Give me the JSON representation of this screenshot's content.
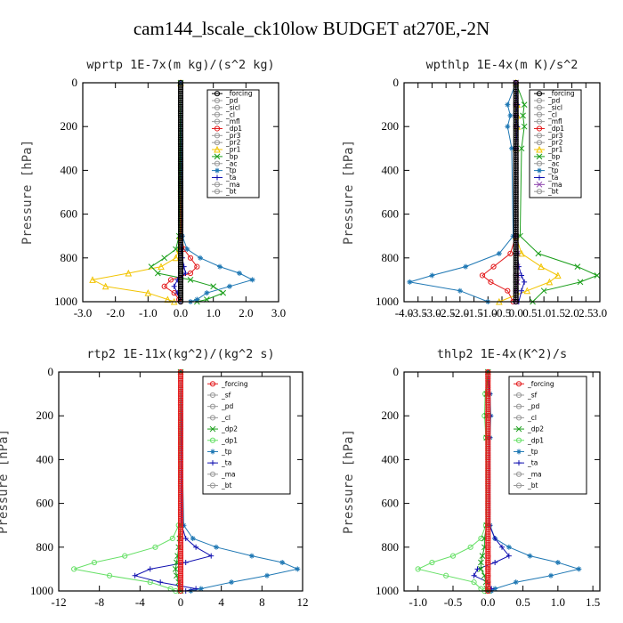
{
  "title": "cam144_lscale_ck10low  BUDGET at270E,-2N",
  "chart_data": [
    {
      "type": "line",
      "title": "wprtp  1E-7x(m kg)/(s^2 kg)",
      "ylabel": "Pressure [hPa]",
      "xlim": [
        -3,
        3
      ],
      "ylim": [
        1000,
        0
      ],
      "xticks": [
        "-3.0",
        "-2.0",
        "-1.0",
        "0.0",
        "1.0",
        "2.0",
        "3.0"
      ],
      "yticks": [
        0,
        200,
        400,
        600,
        800,
        1000
      ],
      "legend": [
        "_forcing",
        "_pd",
        "_sicl",
        "_cl",
        "_mfl",
        "_dp1",
        "_pr3",
        "_pr2",
        "_pr1",
        "_bp",
        "_ac",
        "_tp",
        "_ta",
        "_ma",
        "_bt"
      ],
      "y": [
        0,
        700,
        760,
        800,
        840,
        870,
        900,
        930,
        960,
        990,
        1000
      ],
      "series": [
        {
          "name": "_pr1",
          "color": "#f2c400",
          "marker": "tri",
          "values": [
            0,
            -0.02,
            -0.05,
            -0.15,
            -0.6,
            -1.6,
            -2.7,
            -2.3,
            -1.0,
            -0.4,
            -0.2
          ]
        },
        {
          "name": "_bp",
          "color": "#1a9e1a",
          "marker": "x",
          "values": [
            0,
            -0.05,
            -0.15,
            -0.5,
            -0.9,
            -0.7,
            0.3,
            1.0,
            1.3,
            0.8,
            0.5
          ]
        },
        {
          "name": "_dp1",
          "color": "#e31a1c",
          "marker": "circle",
          "values": [
            0,
            0.02,
            0.1,
            0.3,
            0.5,
            0.3,
            -0.3,
            -0.5,
            -0.2,
            -0.05,
            0
          ]
        },
        {
          "name": "_tp",
          "color": "#1f78b4",
          "marker": "star",
          "values": [
            0,
            0.05,
            0.2,
            0.6,
            1.2,
            1.8,
            2.2,
            1.5,
            0.8,
            0.5,
            0.3
          ]
        },
        {
          "name": "_ta",
          "color": "#1010b0",
          "marker": "plus",
          "values": [
            0,
            0,
            0.02,
            0.05,
            0.1,
            0.15,
            -0.1,
            -0.2,
            -0.1,
            0,
            0
          ]
        },
        {
          "name": "_forcing",
          "color": "#000000",
          "marker": "circle",
          "values": [
            0,
            0,
            0,
            0,
            0,
            0,
            0,
            0,
            0,
            0,
            0
          ]
        }
      ]
    },
    {
      "type": "line",
      "title": "wpthlp  1E-4x(m K)/s^2",
      "ylabel": "Pressure [hPa]",
      "xlim": [
        -4,
        3
      ],
      "ylim": [
        1000,
        0
      ],
      "xticks": [
        "-4.0",
        "-3.5",
        "-3.0",
        "-2.5",
        "-2.0",
        "-1.5",
        "-1.0",
        "-0.5",
        "0.0",
        "0.5",
        "1.0",
        "1.5",
        "2.0",
        "2.5",
        "3.0"
      ],
      "yticks": [
        0,
        200,
        400,
        600,
        800,
        1000
      ],
      "legend": [
        "_forcing",
        "_pd",
        "_sicl",
        "_cl",
        "_mfl",
        "_dp1",
        "_pr3",
        "_pr2",
        "_pr1",
        "_bp",
        "_ac",
        "_tp",
        "_ta",
        "_ma",
        "_bt"
      ],
      "y": [
        0,
        100,
        150,
        200,
        300,
        700,
        780,
        840,
        880,
        910,
        950,
        1000
      ],
      "series": [
        {
          "name": "_tp",
          "color": "#1f78b4",
          "marker": "star",
          "values": [
            0,
            -0.3,
            -0.2,
            -0.3,
            -0.15,
            -0.1,
            -0.6,
            -1.8,
            -3.0,
            -3.8,
            -2.0,
            -1.0
          ]
        },
        {
          "name": "_bp",
          "color": "#1a9e1a",
          "marker": "x",
          "values": [
            0,
            0.3,
            0.25,
            0.3,
            0.2,
            0.15,
            0.8,
            2.2,
            2.9,
            2.3,
            1.0,
            0.6
          ]
        },
        {
          "name": "_dp1",
          "color": "#e31a1c",
          "marker": "circle",
          "values": [
            0,
            0,
            0,
            0,
            0,
            0,
            -0.2,
            -0.8,
            -1.2,
            -0.9,
            -0.3,
            -0.1
          ]
        },
        {
          "name": "_pr1",
          "color": "#f2c400",
          "marker": "tri",
          "values": [
            0,
            0.05,
            0.05,
            0.05,
            0,
            0,
            0.2,
            0.9,
            1.5,
            1.2,
            0.4,
            -0.6
          ]
        },
        {
          "name": "_ta",
          "color": "#1010b0",
          "marker": "plus",
          "values": [
            0,
            0.05,
            0,
            0.05,
            0,
            0,
            0.05,
            0.1,
            0.2,
            0.3,
            0.2,
            0.1
          ]
        },
        {
          "name": "_ma",
          "color": "#8e44ad",
          "marker": "x",
          "values": [
            0,
            0,
            0,
            0,
            0,
            0,
            0.05,
            0.05,
            0.05,
            0.05,
            0,
            0
          ]
        },
        {
          "name": "_forcing",
          "color": "#000000",
          "marker": "circle",
          "values": [
            0,
            0,
            0,
            0,
            0,
            0,
            0,
            0,
            0,
            0,
            0,
            0
          ]
        }
      ]
    },
    {
      "type": "line",
      "title": "rtp2  1E-11x(kg^2)/(kg^2 s)",
      "ylabel": "Pressure [hPa]",
      "xlim": [
        -12,
        12
      ],
      "ylim": [
        1000,
        0
      ],
      "xticks": [
        "-12",
        "-8",
        "-4",
        "0",
        "4",
        "8",
        "12"
      ],
      "yticks": [
        0,
        200,
        400,
        600,
        800,
        1000
      ],
      "legend": [
        "_forcing",
        "_sf",
        "_pd",
        "_cl",
        "_dp2",
        "_dp1",
        "_tp",
        "_ta",
        "_ma",
        "_bt"
      ],
      "y": [
        0,
        700,
        760,
        800,
        840,
        870,
        900,
        930,
        960,
        990,
        1000
      ],
      "series": [
        {
          "name": "_dp1",
          "color": "#66e066",
          "marker": "circle",
          "values": [
            0,
            -0.2,
            -0.8,
            -2.5,
            -5.5,
            -8.5,
            -10.5,
            -7.0,
            -3.0,
            -1.0,
            -0.5
          ]
        },
        {
          "name": "_tp",
          "color": "#1f78b4",
          "marker": "star",
          "values": [
            0,
            0.3,
            1.2,
            3.5,
            7.0,
            10.0,
            11.5,
            8.5,
            5.0,
            2.0,
            1.0
          ]
        },
        {
          "name": "_ta",
          "color": "#1010b0",
          "marker": "plus",
          "values": [
            0,
            0.1,
            0.5,
            1.5,
            3.0,
            0.5,
            -3.0,
            -4.5,
            -2.0,
            1.5,
            0.5
          ]
        },
        {
          "name": "_dp2",
          "color": "#1a9e1a",
          "marker": "x",
          "values": [
            0,
            0,
            -0.1,
            -0.2,
            -0.3,
            -0.4,
            -0.5,
            -0.4,
            -0.2,
            -0.1,
            0
          ]
        },
        {
          "name": "_forcing",
          "color": "#e31a1c",
          "marker": "circle",
          "values": [
            0,
            0,
            0,
            0,
            0,
            0,
            0,
            0,
            0,
            0,
            0
          ]
        }
      ]
    },
    {
      "type": "line",
      "title": "thlp2  1E-4x(K^2)/s",
      "ylabel": "Pressure [hPa]",
      "xlim": [
        -1.2,
        1.6
      ],
      "ylim": [
        1000,
        0
      ],
      "xticks": [
        "-1.0",
        "-0.5",
        "0.0",
        "0.5",
        "1.0",
        "1.5"
      ],
      "yticks": [
        0,
        200,
        400,
        600,
        800,
        1000
      ],
      "legend": [
        "_forcing",
        "_sf",
        "_pd",
        "_cl",
        "_dp2",
        "_dp1",
        "_tp",
        "_ta",
        "_ma",
        "_bt"
      ],
      "y": [
        0,
        100,
        200,
        300,
        700,
        760,
        800,
        840,
        870,
        900,
        930,
        960,
        990,
        1000
      ],
      "series": [
        {
          "name": "_dp1",
          "color": "#66e066",
          "marker": "circle",
          "values": [
            0,
            -0.04,
            -0.05,
            -0.03,
            -0.03,
            -0.1,
            -0.25,
            -0.5,
            -0.8,
            -1.0,
            -0.6,
            -0.2,
            -0.1,
            -0.05
          ]
        },
        {
          "name": "_tp",
          "color": "#1f78b4",
          "marker": "star",
          "values": [
            0,
            0.03,
            0.04,
            0.03,
            0.03,
            0.1,
            0.3,
            0.6,
            1.0,
            1.3,
            0.9,
            0.4,
            0.1,
            0.05
          ]
        },
        {
          "name": "_ta",
          "color": "#1010b0",
          "marker": "plus",
          "values": [
            0,
            0.02,
            0.03,
            0.02,
            0.02,
            0.1,
            0.2,
            0.3,
            0.1,
            -0.15,
            -0.2,
            0,
            0.05,
            0
          ]
        },
        {
          "name": "_dp2",
          "color": "#1a9e1a",
          "marker": "x",
          "values": [
            0,
            -0.02,
            -0.02,
            -0.02,
            -0.02,
            -0.05,
            -0.05,
            -0.08,
            -0.1,
            -0.1,
            -0.05,
            -0.03,
            -0.02,
            0
          ]
        },
        {
          "name": "_forcing",
          "color": "#e31a1c",
          "marker": "circle",
          "values": [
            0,
            0,
            0,
            0,
            0,
            0,
            0,
            0,
            0,
            0,
            0,
            0,
            0,
            0
          ]
        }
      ]
    }
  ]
}
